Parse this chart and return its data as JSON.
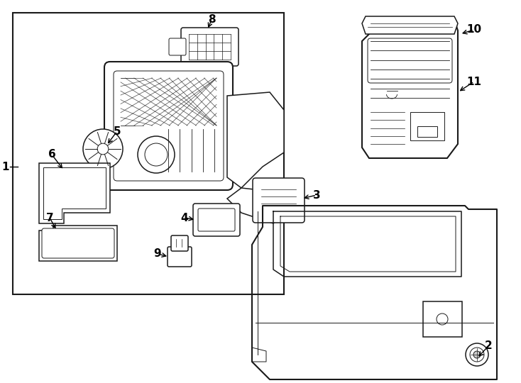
{
  "bg_color": "#ffffff",
  "line_color": "#1a1a1a",
  "fig_width": 7.34,
  "fig_height": 5.4,
  "dpi": 100
}
